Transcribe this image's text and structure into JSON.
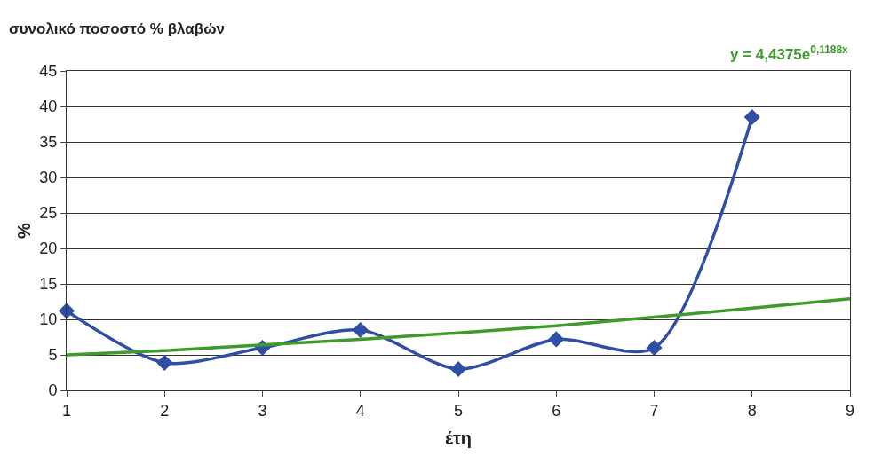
{
  "chart_data": {
    "type": "line",
    "title": "συνολικό ποσοστό % βλαβών",
    "xlabel": "έτη",
    "ylabel": "%",
    "annotations": [
      "y = 4,4375e$^{0,1188x}$"
    ],
    "series": [
      {
        "x": [
          1,
          2,
          3,
          4,
          5,
          6,
          7,
          8
        ],
        "values": [
          11.2,
          3.9,
          6.0,
          8.5,
          3.0,
          7.2,
          6.0,
          38.5
        ],
        "color": "#2e4fa3",
        "marker": "diamond"
      },
      {
        "type": "line",
        "x": [
          1,
          2,
          3,
          4,
          5,
          6,
          7,
          8,
          9
        ],
        "values": [
          5.0,
          5.6,
          6.4,
          7.2,
          8.1,
          9.1,
          10.3,
          11.6,
          12.9
        ],
        "color": "#3f9a2e",
        "marker": "none"
      }
    ],
    "xlim": [
      1,
      9
    ],
    "xticks": [
      1,
      2,
      3,
      4,
      5,
      6,
      7,
      8,
      9
    ],
    "ylim": [
      0,
      45
    ],
    "yticks": [
      0,
      5,
      10,
      15,
      20,
      25,
      30,
      35,
      40,
      45
    ],
    "grid": "y"
  }
}
